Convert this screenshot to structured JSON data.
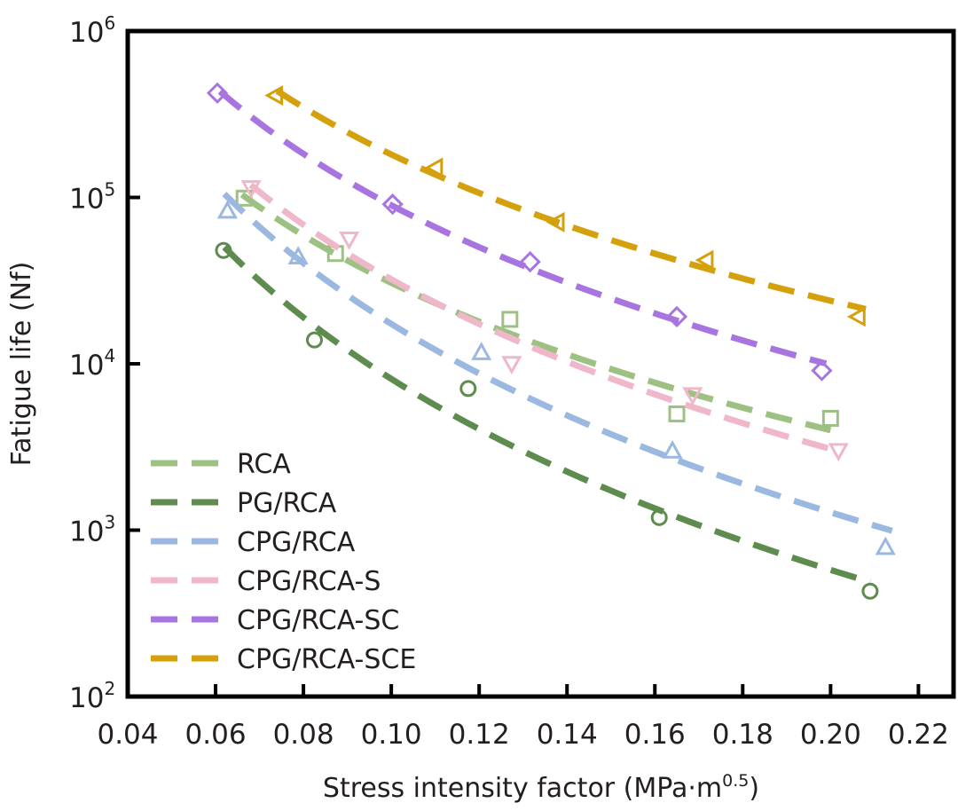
{
  "chart_data": {
    "type": "scatter",
    "xlabel": "Stress intensity factor (MPa·m",
    "xlabel_sup": "0.5",
    "xlabel_end": ")",
    "ylabel": "Fatigue life (Nf)",
    "xlim": [
      0.04,
      0.228
    ],
    "ylim": [
      100,
      1000000
    ],
    "yscale": "log",
    "x_ticks": [
      "0.04",
      "0.06",
      "0.08",
      "0.10",
      "0.12",
      "0.14",
      "0.16",
      "0.18",
      "0.20",
      "0.22"
    ],
    "y_ticks": [
      {
        "base": "10",
        "exp": "2"
      },
      {
        "base": "10",
        "exp": "3"
      },
      {
        "base": "10",
        "exp": "4"
      },
      {
        "base": "10",
        "exp": "5"
      },
      {
        "base": "10",
        "exp": "6"
      }
    ],
    "grid": false,
    "legend_position": "bottom-left",
    "series": [
      {
        "name": "RCA",
        "color": "#9dc183",
        "marker": "square",
        "fit_range": [
          0.066,
          0.2
        ],
        "x": [
          0.0665,
          0.0873,
          0.127,
          0.165,
          0.2
        ],
        "y": [
          99000,
          46000,
          18500,
          5000,
          4700
        ]
      },
      {
        "name": "PG/RCA",
        "color": "#5e8c4e",
        "marker": "circle",
        "fit_range": [
          0.062,
          0.209
        ],
        "x": [
          0.0618,
          0.0825,
          0.1175,
          0.161,
          0.209
        ],
        "y": [
          48000,
          13900,
          7100,
          1190,
          430
        ]
      },
      {
        "name": "CPG/RCA",
        "color": "#9bb8e0",
        "marker": "triangle-up",
        "fit_range": [
          0.062,
          0.214
        ],
        "x": [
          0.0627,
          0.0788,
          0.1205,
          0.164,
          0.2125
        ],
        "y": [
          83000,
          44000,
          11700,
          3000,
          790
        ]
      },
      {
        "name": "CPG/RCA-S",
        "color": "#f0b6ca",
        "marker": "triangle-down",
        "fit_range": [
          0.068,
          0.2
        ],
        "x": [
          0.0681,
          0.0904,
          0.1274,
          0.1686,
          0.2018
        ],
        "y": [
          114000,
          56000,
          10000,
          6500,
          3000
        ]
      },
      {
        "name": "CPG/RCA-SC",
        "color": "#a875e0",
        "marker": "diamond",
        "fit_range": [
          0.061,
          0.199
        ],
        "x": [
          0.0604,
          0.1003,
          0.1316,
          0.165,
          0.198
        ],
        "y": [
          424000,
          91000,
          41000,
          19200,
          9100
        ]
      },
      {
        "name": "CPG/RCA-SCE",
        "color": "#d4a00c",
        "marker": "triangle-left",
        "fit_range": [
          0.074,
          0.208
        ],
        "x": [
          0.0736,
          0.11,
          0.1377,
          0.1716,
          0.2062
        ],
        "y": [
          410000,
          151000,
          71000,
          42000,
          19200
        ]
      }
    ]
  }
}
